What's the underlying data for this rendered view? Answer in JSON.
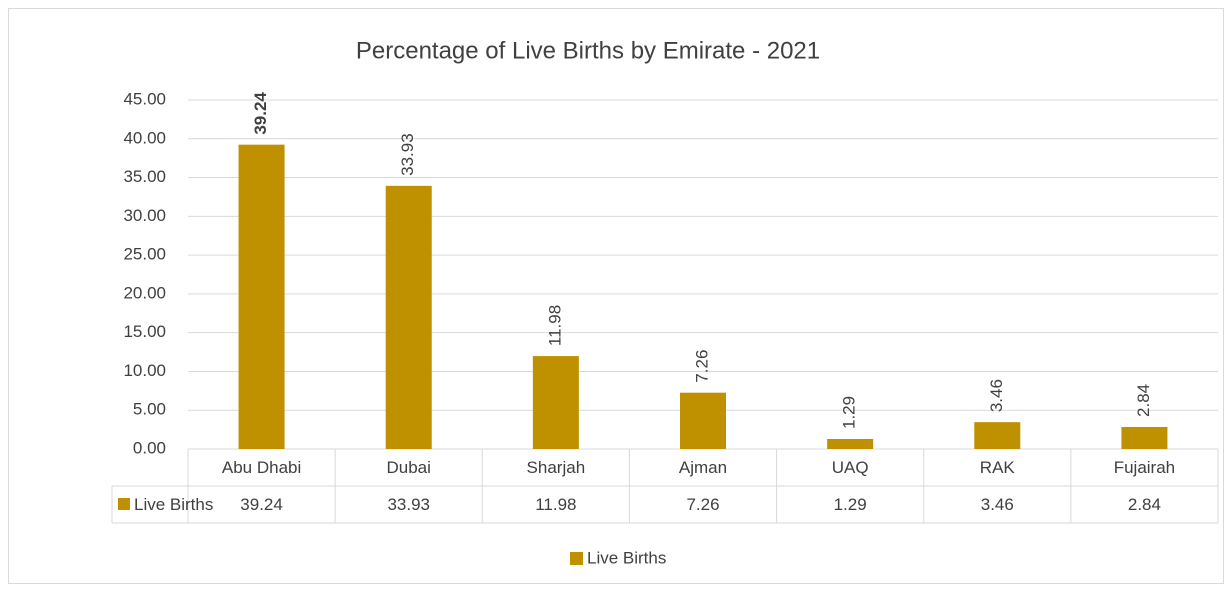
{
  "chart_data": {
    "type": "bar",
    "title": "Percentage of Live Births by Emirate - 2021",
    "categories": [
      "Abu Dhabi",
      "Dubai",
      "Sharjah",
      "Ajman",
      "UAQ",
      "RAK",
      "Fujairah"
    ],
    "series": [
      {
        "name": "Live Births",
        "color": "#bf9000",
        "values": [
          39.24,
          33.93,
          11.98,
          7.26,
          1.29,
          3.46,
          2.84
        ]
      }
    ],
    "ylim": [
      0,
      45
    ],
    "yticks": [
      {
        "value": 0,
        "label": "0.00"
      },
      {
        "value": 5,
        "label": "5.00"
      },
      {
        "value": 10,
        "label": "10.00"
      },
      {
        "value": 15,
        "label": "15.00"
      },
      {
        "value": 20,
        "label": "20.00"
      },
      {
        "value": 25,
        "label": "25.00"
      },
      {
        "value": 30,
        "label": "30.00"
      },
      {
        "value": 35,
        "label": "35.00"
      },
      {
        "value": 40,
        "label": "40.00"
      },
      {
        "value": 45,
        "label": "45.00"
      }
    ],
    "grid": true,
    "legend": "bottom"
  }
}
